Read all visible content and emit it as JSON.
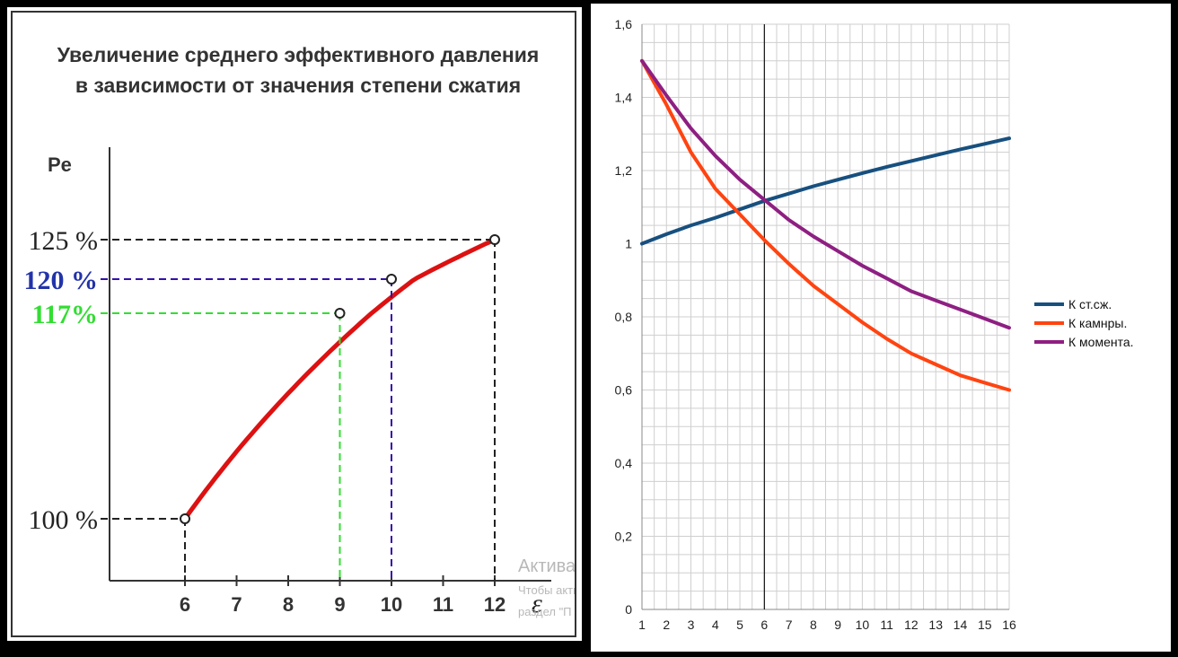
{
  "chart_data": [
    {
      "type": "line",
      "title": "Увеличение среднего эффективного давления",
      "subtitle": "в зависимости от значения степени сжатия",
      "ylabel": "Pe",
      "xlabel": "ε",
      "x_ticks": [
        "6",
        "7",
        "8",
        "9",
        "10",
        "11",
        "12"
      ],
      "xlim": [
        5,
        13
      ],
      "y_range_percent": [
        100,
        125
      ],
      "points": [
        {
          "x": 6,
          "y": 100,
          "label": "100 %",
          "color": "#222222"
        },
        {
          "x": 9,
          "y": 117,
          "label": "117%",
          "color": "#33dd33"
        },
        {
          "x": 10,
          "y": 120,
          "label": "120 %",
          "color": "#2233aa"
        },
        {
          "x": 12,
          "y": 125,
          "label": "125 %",
          "color": "#222222"
        }
      ],
      "curve_color": "#dd1111",
      "guide_colors": {
        "9": "#33dd33",
        "10": "#3311aa",
        "12": "#222222",
        "6": "#222222"
      }
    },
    {
      "type": "line",
      "x": [
        1,
        2,
        3,
        4,
        5,
        6,
        7,
        8,
        9,
        10,
        11,
        12,
        13,
        14,
        15,
        16
      ],
      "ylim": [
        0,
        1.6
      ],
      "y_ticks": [
        "0",
        "0,2",
        "0,4",
        "0,6",
        "0,8",
        "1",
        "1,2",
        "1,4",
        "1,6"
      ],
      "x_ticks": [
        "1",
        "2",
        "3",
        "4",
        "5",
        "6",
        "7",
        "8",
        "9",
        "10",
        "11",
        "12",
        "13",
        "14",
        "15",
        "16"
      ],
      "grid": true,
      "vertical_marker_x": 6,
      "legend_position": "right",
      "series": [
        {
          "name": "К ст.сж.",
          "color": "#17507f",
          "values": [
            1.0,
            1.026,
            1.05,
            1.071,
            1.094,
            1.117,
            1.137,
            1.157,
            1.175,
            1.193,
            1.21,
            1.226,
            1.242,
            1.258,
            1.273,
            1.288
          ]
        },
        {
          "name": "К камнры.",
          "color": "#ff4411",
          "values": [
            1.5,
            1.38,
            1.25,
            1.15,
            1.08,
            1.01,
            0.945,
            0.885,
            0.835,
            0.785,
            0.74,
            0.7,
            0.67,
            0.64,
            0.62,
            0.6
          ]
        },
        {
          "name": "К момента.",
          "color": "#8e1f82",
          "values": [
            1.5,
            1.405,
            1.315,
            1.24,
            1.175,
            1.12,
            1.065,
            1.02,
            0.98,
            0.94,
            0.905,
            0.87,
            0.845,
            0.82,
            0.795,
            0.77
          ]
        }
      ]
    }
  ],
  "watermark": {
    "line1": "Актива",
    "line2": "Чтобы акти",
    "line3": "раздел \"П"
  }
}
